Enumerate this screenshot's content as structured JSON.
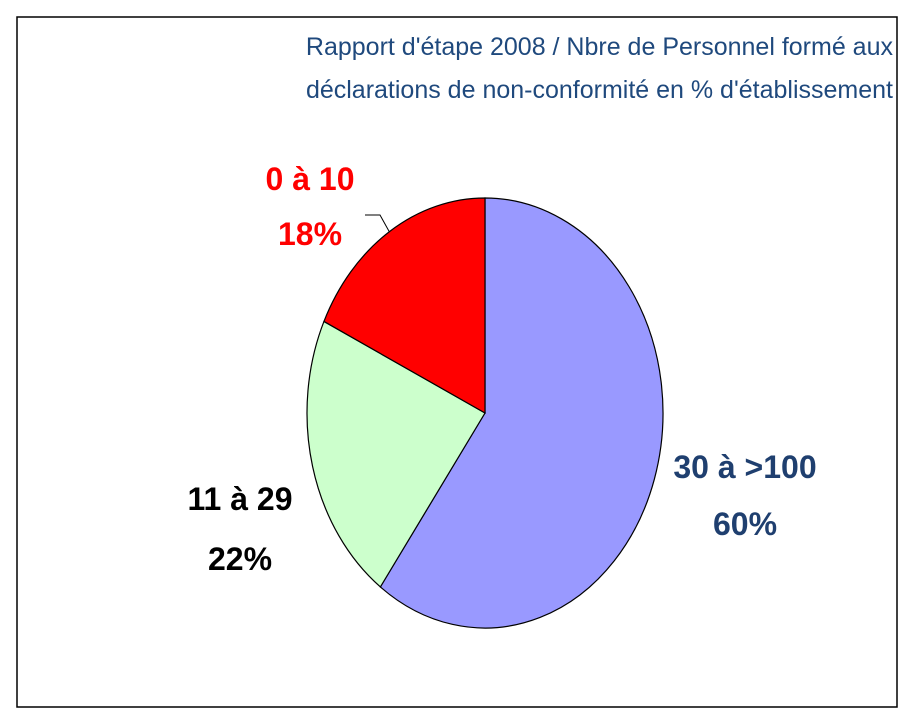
{
  "chart_data": {
    "type": "pie",
    "title": [
      "Rapport d'étape 2008 / Nbre de Personnel formé aux",
      "déclarations de non-conformité en % d'établissement"
    ],
    "categories": [
      "30 à >100",
      "11 à 29",
      "0 à 10"
    ],
    "values": [
      60,
      22,
      18
    ],
    "value_labels": [
      "60%",
      "22%",
      "18%"
    ],
    "colors": [
      "#9999ff",
      "#ccffcc",
      "#ff0000"
    ],
    "label_colors": [
      "#1f3f6f",
      "#000000",
      "#ff0000"
    ]
  }
}
